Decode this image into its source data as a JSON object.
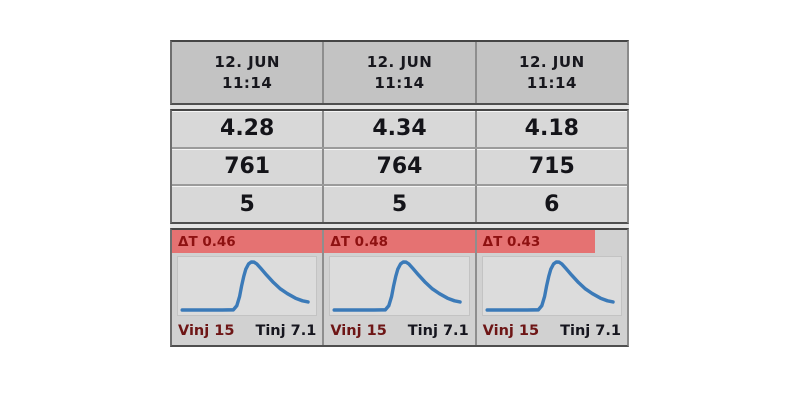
{
  "table": {
    "colors": {
      "header_bg": "#c3c3c3",
      "cell_bg": "#d8d8d8",
      "chart_section_bg": "#d1d1d1",
      "chart_panel_bg": "#dcdcdc",
      "banner_bg": "#e57272",
      "banner_text": "#8e1111",
      "curve": "#3b7ab8",
      "vinj_text": "#6e1616",
      "tinj_text": "#16161f",
      "value_text": "#141419"
    },
    "columns": [
      {
        "header": {
          "date": "12. JUN",
          "time": "11:14"
        },
        "values": [
          "4.28",
          "761",
          "5"
        ],
        "trial": {
          "delta_t_label": "ΔT 0.46",
          "banner_width_pct": 100,
          "vinj_label": "Vinj 15",
          "tinj_label": "Tinj 7.1"
        }
      },
      {
        "header": {
          "date": "12. JUN",
          "time": "11:14"
        },
        "values": [
          "4.34",
          "764",
          "5"
        ],
        "trial": {
          "delta_t_label": "ΔT 0.48",
          "banner_width_pct": 100,
          "vinj_label": "Vinj 15",
          "tinj_label": "Tinj 7.1"
        }
      },
      {
        "header": {
          "date": "12. JUN",
          "time": "11:14"
        },
        "values": [
          "4.18",
          "715",
          "6"
        ],
        "trial": {
          "delta_t_label": "ΔT 0.43",
          "banner_width_pct": 79,
          "vinj_label": "Vinj 15",
          "tinj_label": "Tinj 7.1"
        }
      }
    ]
  },
  "chart_data": [
    {
      "type": "line",
      "title": "Thermodilution curve (ΔT 0.46)",
      "xlabel": "",
      "ylabel": "",
      "x_range": [
        0,
        1
      ],
      "y_range": [
        0,
        1
      ],
      "grid": false,
      "legend": false,
      "points": [
        [
          0.03,
          0.915
        ],
        [
          0.12,
          0.915
        ],
        [
          0.22,
          0.915
        ],
        [
          0.32,
          0.915
        ],
        [
          0.4,
          0.91
        ],
        [
          0.425,
          0.84
        ],
        [
          0.445,
          0.68
        ],
        [
          0.46,
          0.5
        ],
        [
          0.475,
          0.34
        ],
        [
          0.49,
          0.21
        ],
        [
          0.51,
          0.12
        ],
        [
          0.53,
          0.085
        ],
        [
          0.55,
          0.09
        ],
        [
          0.57,
          0.12
        ],
        [
          0.6,
          0.2
        ],
        [
          0.64,
          0.31
        ],
        [
          0.69,
          0.44
        ],
        [
          0.74,
          0.55
        ],
        [
          0.79,
          0.63
        ],
        [
          0.85,
          0.71
        ],
        [
          0.9,
          0.755
        ],
        [
          0.94,
          0.775
        ]
      ]
    },
    {
      "type": "line",
      "title": "Thermodilution curve (ΔT 0.48)",
      "xlabel": "",
      "ylabel": "",
      "x_range": [
        0,
        1
      ],
      "y_range": [
        0,
        1
      ],
      "grid": false,
      "legend": false,
      "points": [
        [
          0.03,
          0.915
        ],
        [
          0.12,
          0.915
        ],
        [
          0.22,
          0.915
        ],
        [
          0.32,
          0.915
        ],
        [
          0.4,
          0.91
        ],
        [
          0.425,
          0.84
        ],
        [
          0.445,
          0.68
        ],
        [
          0.46,
          0.5
        ],
        [
          0.475,
          0.34
        ],
        [
          0.49,
          0.21
        ],
        [
          0.51,
          0.12
        ],
        [
          0.53,
          0.085
        ],
        [
          0.55,
          0.09
        ],
        [
          0.57,
          0.12
        ],
        [
          0.6,
          0.2
        ],
        [
          0.64,
          0.31
        ],
        [
          0.69,
          0.44
        ],
        [
          0.74,
          0.55
        ],
        [
          0.79,
          0.63
        ],
        [
          0.85,
          0.71
        ],
        [
          0.9,
          0.755
        ],
        [
          0.94,
          0.775
        ]
      ]
    },
    {
      "type": "line",
      "title": "Thermodilution curve (ΔT 0.43)",
      "xlabel": "",
      "ylabel": "",
      "x_range": [
        0,
        1
      ],
      "y_range": [
        0,
        1
      ],
      "grid": false,
      "legend": false,
      "points": [
        [
          0.03,
          0.915
        ],
        [
          0.12,
          0.915
        ],
        [
          0.22,
          0.915
        ],
        [
          0.32,
          0.915
        ],
        [
          0.4,
          0.91
        ],
        [
          0.425,
          0.84
        ],
        [
          0.445,
          0.68
        ],
        [
          0.46,
          0.5
        ],
        [
          0.475,
          0.34
        ],
        [
          0.49,
          0.21
        ],
        [
          0.51,
          0.12
        ],
        [
          0.53,
          0.085
        ],
        [
          0.55,
          0.09
        ],
        [
          0.57,
          0.12
        ],
        [
          0.6,
          0.2
        ],
        [
          0.64,
          0.31
        ],
        [
          0.69,
          0.44
        ],
        [
          0.74,
          0.55
        ],
        [
          0.79,
          0.63
        ],
        [
          0.85,
          0.71
        ],
        [
          0.9,
          0.755
        ],
        [
          0.94,
          0.775
        ]
      ]
    }
  ]
}
